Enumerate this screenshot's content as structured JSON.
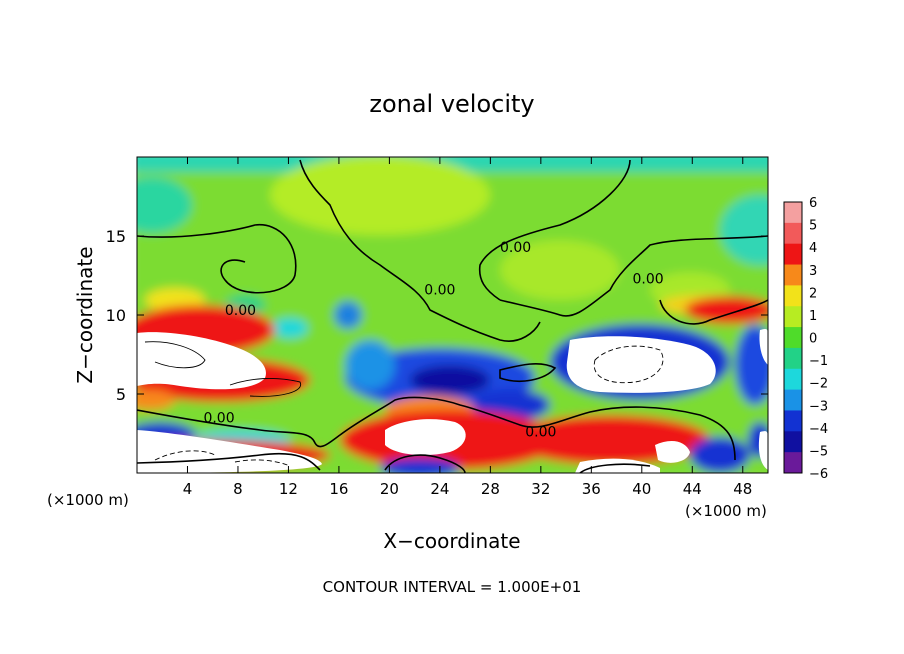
{
  "chart_data": {
    "type": "heatmap",
    "title": "zonal velocity",
    "xlabel": "X−coordinate",
    "ylabel": "Z−coordinate",
    "x_unit_left": "(×1000 m)",
    "x_unit_right": "(×1000 m)",
    "footer": "CONTOUR INTERVAL = 1.000E+01",
    "xlim": [
      0,
      50
    ],
    "ylim": [
      0,
      20
    ],
    "x_ticks": [
      4,
      8,
      12,
      16,
      20,
      24,
      28,
      32,
      36,
      40,
      44,
      48
    ],
    "x_tick_labels": [
      "4",
      "8",
      "12",
      "16",
      "20",
      "24",
      "28",
      "32",
      "36",
      "40",
      "44",
      "48"
    ],
    "y_ticks": [
      5,
      10,
      15
    ],
    "y_tick_labels": [
      "5",
      "10",
      "15"
    ],
    "colorbar": {
      "levels": [
        6,
        5,
        4,
        3,
        2,
        1,
        0,
        -1,
        -2,
        -3,
        -4,
        -5,
        -6
      ],
      "labels": [
        "6",
        "5",
        "4",
        "3",
        "2",
        "1",
        "0",
        "−1",
        "−2",
        "−3",
        "−4",
        "−5",
        "−6"
      ],
      "colors": [
        "#f4a0a0",
        "#f25a5a",
        "#ee1515",
        "#f7891a",
        "#f2e21a",
        "#b7ec22",
        "#4fdc2a",
        "#22d287",
        "#1dd8dc",
        "#1a92e6",
        "#1232d2",
        "#1010a0",
        "#6a1a9a"
      ]
    },
    "contour_labels": [
      {
        "text": "0.00",
        "x": 8.2,
        "y": 10.0
      },
      {
        "text": "0.00",
        "x": 24.0,
        "y": 11.3
      },
      {
        "text": "0.00",
        "x": 30.0,
        "y": 14.0
      },
      {
        "text": "0.00",
        "x": 40.5,
        "y": 12.0
      },
      {
        "text": "0.00",
        "x": 6.5,
        "y": 3.2
      },
      {
        "text": "0.00",
        "x": 32.0,
        "y": 2.3
      }
    ]
  }
}
